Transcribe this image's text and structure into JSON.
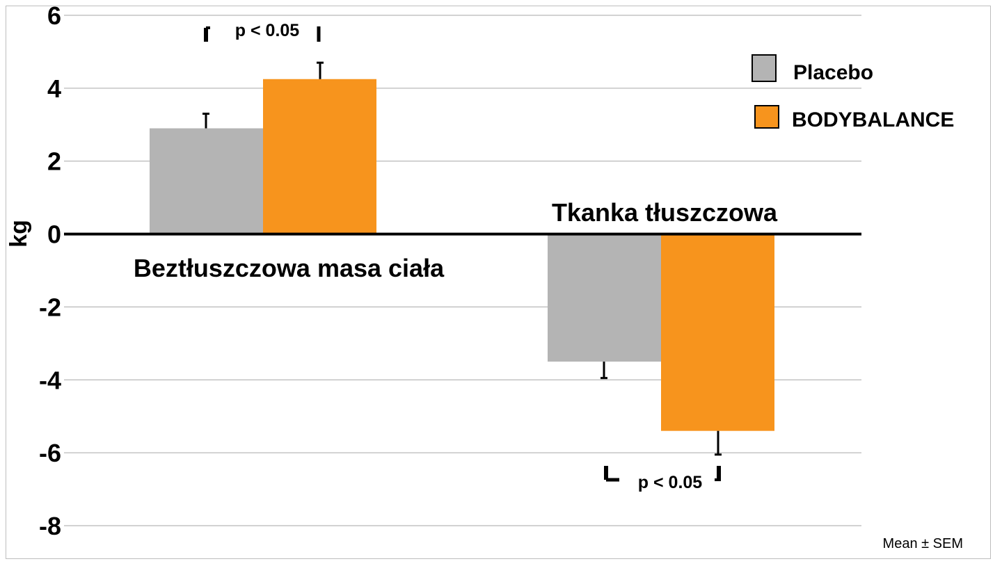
{
  "chart_data": {
    "type": "bar",
    "categories": [
      "Beztłuszczowa masa ciała",
      "Tkanka tłuszczowa"
    ],
    "series": [
      {
        "name": "Placebo",
        "values": [
          2.9,
          -3.5
        ],
        "errors": [
          0.4,
          0.45
        ],
        "color": "#b4b4b4"
      },
      {
        "name": "BODYBALANCE",
        "values": [
          4.25,
          -5.4
        ],
        "errors": [
          0.45,
          0.65
        ],
        "color": "#f7941d"
      }
    ],
    "ylabel": "kg",
    "xlabel": "",
    "ylim": [
      -8,
      6
    ],
    "yticks": [
      6,
      4,
      2,
      0,
      -2,
      -4,
      -6,
      -8
    ],
    "grid": true,
    "legend_position": "top-right",
    "annotations": [
      "p < 0.05",
      "p < 0.05"
    ],
    "note": "Mean ± SEM"
  }
}
